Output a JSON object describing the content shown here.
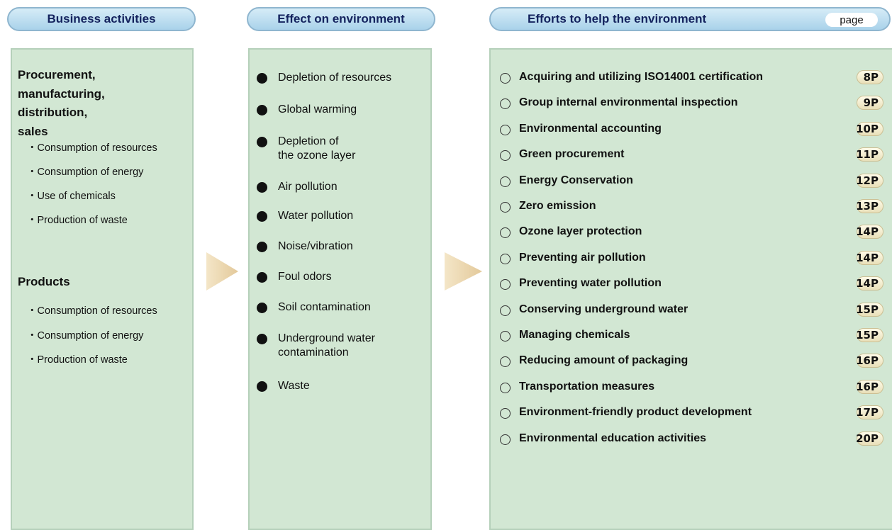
{
  "columns": [
    {
      "title": "Business activities",
      "groups": [
        {
          "heading": "Procurement,\nmanufacturing,\ndistribution,\nsales",
          "items": [
            "・Consumption of resources",
            "・Consumption of energy",
            "・Use of chemicals",
            "・Production of waste"
          ]
        },
        {
          "heading": "Products",
          "items": [
            "・Consumption of resources",
            "・Consumption of energy",
            "・Production of waste"
          ]
        }
      ]
    },
    {
      "title": "Effect on environment",
      "items": [
        "Depletion of resources",
        "Global warming",
        "Depletion of\nthe ozone layer",
        "Air pollution",
        "Water pollution",
        "Noise/vibration",
        "Foul odors",
        "Soil contamination",
        "Underground water\ncontamination",
        "Waste"
      ]
    },
    {
      "title": "Efforts to help the environment",
      "page_label": "page",
      "items": [
        {
          "text": "Acquiring and utilizing ISO14001 certification",
          "page": "8P"
        },
        {
          "text": "Group internal environmental inspection",
          "page": "9P"
        },
        {
          "text": "Environmental accounting",
          "page": "10P"
        },
        {
          "text": "Green procurement",
          "page": "11P"
        },
        {
          "text": "Energy Conservation",
          "page": "12P"
        },
        {
          "text": "Zero emission",
          "page": "13P"
        },
        {
          "text": "Ozone layer protection",
          "page": "14P"
        },
        {
          "text": "Preventing air pollution",
          "page": "14P"
        },
        {
          "text": "Preventing water pollution",
          "page": "14P"
        },
        {
          "text": "Conserving underground water",
          "page": "15P"
        },
        {
          "text": "Managing chemicals",
          "page": "15P"
        },
        {
          "text": "Reducing amount of packaging",
          "page": "16P"
        },
        {
          "text": "Transportation measures",
          "page": "16P"
        },
        {
          "text": "Environment-friendly product development",
          "page": "17P"
        },
        {
          "text": "Environmental education activities",
          "page": "20P"
        }
      ]
    }
  ]
}
